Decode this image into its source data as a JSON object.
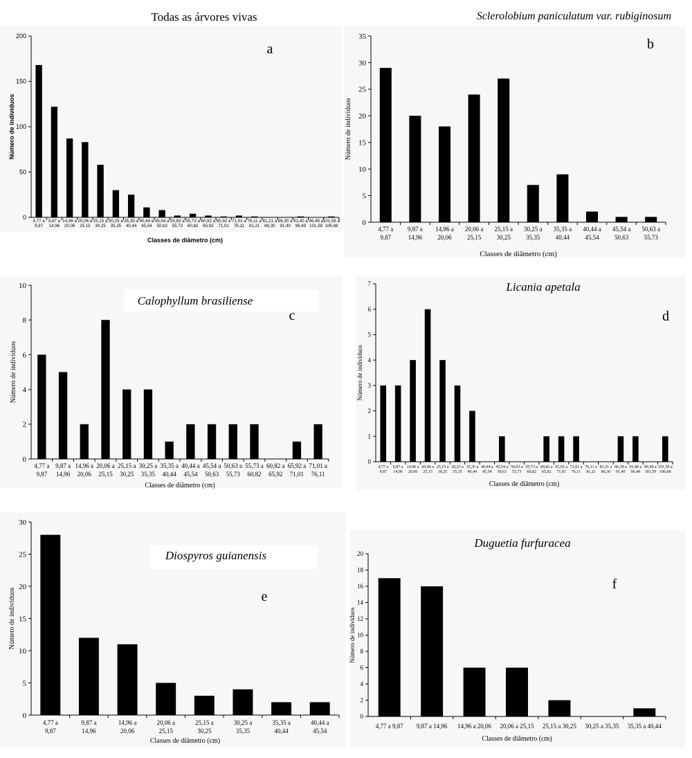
{
  "chart_data": [
    {
      "id": "a",
      "type": "bar",
      "title": "Todas as árvores vivas",
      "title_italic": false,
      "panel_letter": "a",
      "xlabel": "Classes de diâmetro (cm)",
      "ylabel": "Número de indivíduos",
      "ylim": [
        0,
        200
      ],
      "yticks": [
        0,
        50,
        100,
        150,
        200
      ],
      "categories": [
        [
          "4,77 a",
          "9,87"
        ],
        [
          "9,87 a",
          "14,96"
        ],
        [
          "14,96 a",
          "20,06"
        ],
        [
          "20,06 a",
          "25,15"
        ],
        [
          "25,15 a",
          "30,25"
        ],
        [
          "30,25 a",
          "35,35"
        ],
        [
          "35,35 a",
          "40,44"
        ],
        [
          "40,44 a",
          "45,54"
        ],
        [
          "45,54 a",
          "50,63"
        ],
        [
          "50,63 a",
          "55,73"
        ],
        [
          "55,73 a",
          "60,82"
        ],
        [
          "60,82 a",
          "65,92"
        ],
        [
          "65,92 a",
          "71,01"
        ],
        [
          "71,01 a",
          "76,11"
        ],
        [
          "76,11 a",
          "81,21"
        ],
        [
          "81,21 a",
          "86,30"
        ],
        [
          "86,30 a",
          "91,40"
        ],
        [
          "91,40 a",
          "96,49"
        ],
        [
          "96,49 a",
          "101,59"
        ],
        [
          "101,59 a",
          "106,68"
        ]
      ],
      "values": [
        168,
        122,
        87,
        83,
        58,
        30,
        25,
        11,
        8,
        2,
        4,
        2,
        1,
        2,
        1,
        0,
        0,
        1,
        0,
        1
      ],
      "grid": false,
      "legend": "none"
    },
    {
      "id": "b",
      "type": "bar",
      "title": "Sclerolobium paniculatum var. rubiginosum",
      "title_italic": true,
      "panel_letter": "b",
      "xlabel": "Classes de diâmetro (cm)",
      "ylabel": "Número de indivíduos",
      "ylim": [
        0,
        35
      ],
      "yticks": [
        0,
        5,
        10,
        15,
        20,
        25,
        30,
        35
      ],
      "categories": [
        [
          "4,77 a",
          "9,87"
        ],
        [
          "9,87 a",
          "14,96"
        ],
        [
          "14,96 a",
          "20,06"
        ],
        [
          "20,06 a",
          "25,15"
        ],
        [
          "25,15 a",
          "30,25"
        ],
        [
          "30,25 a",
          "35,35"
        ],
        [
          "35,35 a",
          "40,44"
        ],
        [
          "40,44 a",
          "45,54"
        ],
        [
          "45,54 a",
          "50,63"
        ],
        [
          "50,63 a",
          "55,73"
        ]
      ],
      "values": [
        29,
        20,
        18,
        24,
        27,
        7,
        9,
        2,
        1,
        1
      ],
      "grid": false,
      "legend": "none"
    },
    {
      "id": "c",
      "type": "bar",
      "title": "Calophyllum brasiliense",
      "title_italic": true,
      "panel_letter": "c",
      "xlabel": "Classes de diâmetro (cm)",
      "ylabel": "Número de indivíduos",
      "ylim": [
        0,
        10
      ],
      "yticks": [
        0,
        2,
        4,
        6,
        8,
        10
      ],
      "categories": [
        [
          "4,77 a",
          "9,87"
        ],
        [
          "9,87 a",
          "14,96"
        ],
        [
          "14,96 a",
          "20,06"
        ],
        [
          "20,06 a",
          "25,15"
        ],
        [
          "25,15 a",
          "30,25"
        ],
        [
          "30,25 a",
          "35,35"
        ],
        [
          "35,35 a",
          "40,44"
        ],
        [
          "40,44 a",
          "45,54"
        ],
        [
          "45,54 a",
          "50,63"
        ],
        [
          "50,63 a",
          "55,73"
        ],
        [
          "55,73 a",
          "60,82"
        ],
        [
          "60,82 a",
          "65,92"
        ],
        [
          "65,92 a",
          "71,01"
        ],
        [
          "71,01 a",
          "76,11"
        ]
      ],
      "values": [
        6,
        5,
        2,
        8,
        4,
        4,
        1,
        2,
        2,
        2,
        2,
        0,
        1,
        2
      ],
      "grid": false,
      "legend": "none"
    },
    {
      "id": "d",
      "type": "bar",
      "title": "Licania apetala",
      "title_italic": true,
      "panel_letter": "d",
      "xlabel": "Classes de diâmetro (cm)",
      "ylabel": "Número de indivíduos",
      "ylim": [
        0,
        7
      ],
      "yticks": [
        0,
        1,
        2,
        3,
        4,
        5,
        6,
        7
      ],
      "categories": [
        [
          "4,77 a",
          "9,87"
        ],
        [
          "9,87 a",
          "14,96"
        ],
        [
          "14,96 a",
          "20,06"
        ],
        [
          "20,06 a",
          "25,15"
        ],
        [
          "25,15 a",
          "30,25"
        ],
        [
          "30,25 a",
          "35,35"
        ],
        [
          "35,35 a",
          "40,44"
        ],
        [
          "40,44 a",
          "45,54"
        ],
        [
          "45,54 a",
          "50,63"
        ],
        [
          "50,63 a",
          "55,73"
        ],
        [
          "55,73 a",
          "60,82"
        ],
        [
          "60,82 a",
          "65,92"
        ],
        [
          "65,92 a",
          "71,01"
        ],
        [
          "71,01 a",
          "76,11"
        ],
        [
          "76,11 a",
          "81,21"
        ],
        [
          "81,21 a",
          "86,30"
        ],
        [
          "86,30 a",
          "91,40"
        ],
        [
          "91,40 a",
          "96,49"
        ],
        [
          "96,49 a",
          "101,59"
        ],
        [
          "101,59 a",
          "106,68"
        ]
      ],
      "values": [
        3,
        3,
        4,
        6,
        4,
        3,
        2,
        0,
        1,
        0,
        0,
        1,
        1,
        1,
        0,
        0,
        1,
        1,
        0,
        1
      ],
      "grid": false,
      "legend": "none"
    },
    {
      "id": "e",
      "type": "bar",
      "title": "Diospyros guianensis",
      "title_italic": true,
      "panel_letter": "e",
      "xlabel": "Classes de diâmetro (cm)",
      "ylabel": "Número de indivíduos",
      "ylim": [
        0,
        30
      ],
      "yticks": [
        0,
        5,
        10,
        15,
        20,
        25,
        30
      ],
      "categories": [
        [
          "4,77 a",
          "9,87"
        ],
        [
          "9,87 a",
          "14,96"
        ],
        [
          "14,96 a",
          "20,06"
        ],
        [
          "20,06 a",
          "25,15"
        ],
        [
          "25,15 a",
          "30,25"
        ],
        [
          "30,25 a",
          "35,35"
        ],
        [
          "35,35 a",
          "40,44"
        ],
        [
          "40,44 a",
          "45,54"
        ]
      ],
      "values": [
        28,
        12,
        11,
        5,
        3,
        4,
        2,
        2
      ],
      "grid": false,
      "legend": "none"
    },
    {
      "id": "f",
      "type": "bar",
      "title": "Duguetia furfuracea",
      "title_italic": true,
      "panel_letter": "f",
      "xlabel": "Classes de diâmetro (cm)",
      "ylabel": "Número de indivíduos",
      "ylim": [
        0,
        20
      ],
      "yticks": [
        0,
        2,
        4,
        6,
        8,
        10,
        12,
        14,
        16,
        18,
        20
      ],
      "categories": [
        [
          "4,77 a 9,87"
        ],
        [
          "9,87 a 14,96"
        ],
        [
          "14,96 a 20,06"
        ],
        [
          "20,06 a 25,15"
        ],
        [
          "25,15 a 30,25"
        ],
        [
          "30,25 a 35,35"
        ],
        [
          "35,35 a 40,44"
        ]
      ],
      "values": [
        17,
        16,
        6,
        6,
        2,
        0,
        1
      ],
      "grid": false,
      "legend": "none"
    }
  ]
}
